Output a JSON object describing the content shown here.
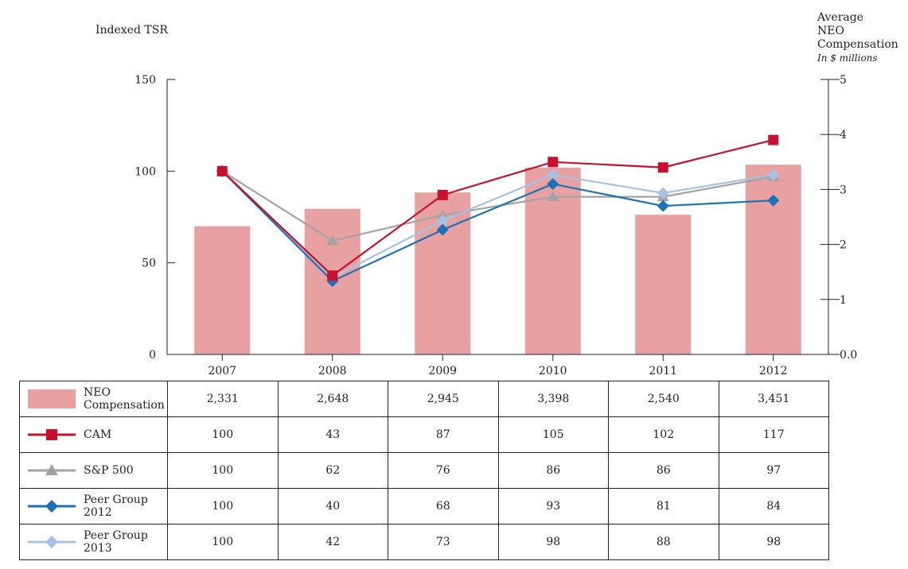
{
  "chart_data": {
    "type": "bar+line",
    "categories": [
      "2007",
      "2008",
      "2009",
      "2010",
      "2011",
      "2012"
    ],
    "left_axis": {
      "title": "Indexed TSR",
      "range": [
        0,
        150
      ],
      "ticks": [
        "0",
        "50",
        "100",
        "150"
      ]
    },
    "right_axis": {
      "title_lines": [
        "Average",
        "NEO",
        "Compensation"
      ],
      "unit": "In $ millions",
      "range": [
        0,
        5
      ],
      "ticks": [
        "0.0",
        "1",
        "2",
        "3",
        "4",
        "5"
      ]
    },
    "bars": {
      "name": "NEO Compensation",
      "values": [
        2331,
        2648,
        2945,
        3398,
        2540,
        3451
      ],
      "labels": [
        "2,331",
        "2,648",
        "2,945",
        "3,398",
        "2,540",
        "3,451"
      ],
      "unit_divisor": 1000,
      "color": "#e8a0a0"
    },
    "series": [
      {
        "name": "CAM",
        "values": [
          100,
          43,
          87,
          105,
          102,
          117
        ],
        "color": "#c8102e",
        "marker": "square"
      },
      {
        "name": "S&P 500",
        "values": [
          100,
          62,
          76,
          86,
          86,
          97
        ],
        "color": "#a3a3a3",
        "marker": "triangle"
      },
      {
        "name": "Peer Group 2012",
        "values": [
          100,
          40,
          68,
          93,
          81,
          84
        ],
        "color": "#1a72b8",
        "marker": "diamond"
      },
      {
        "name": "Peer Group 2013",
        "values": [
          100,
          42,
          73,
          98,
          88,
          98
        ],
        "color": "#a6c1e4",
        "marker": "diamond"
      }
    ]
  }
}
